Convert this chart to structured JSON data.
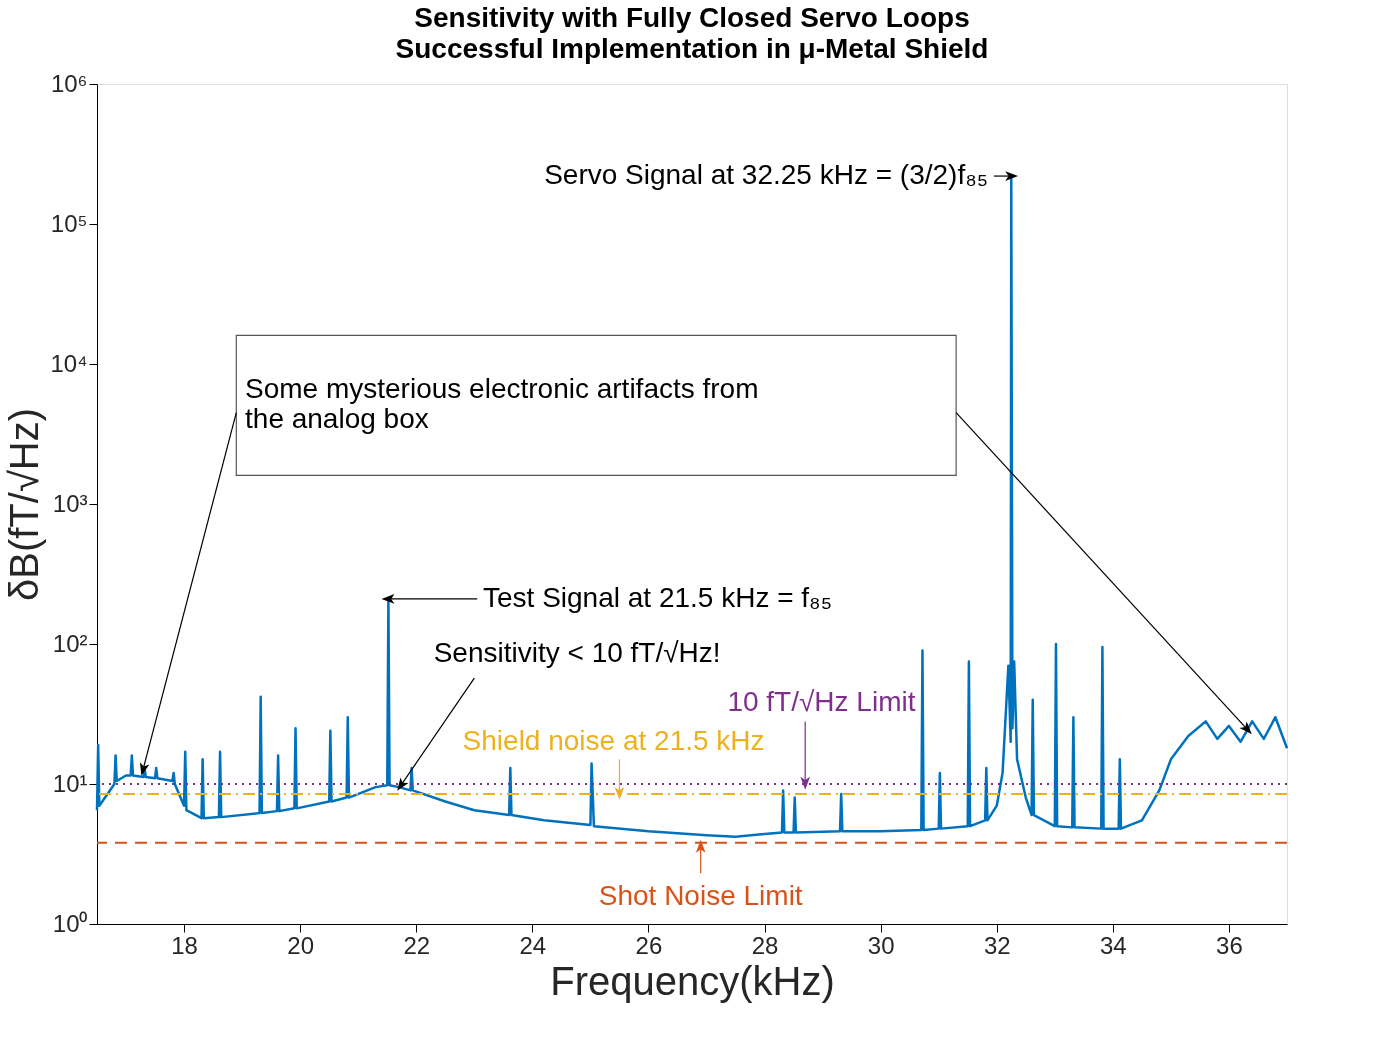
{
  "chart_data": {
    "type": "line",
    "title": "Sensitivity with Fully Closed Servo Loops",
    "subtitle": "Successful Implementation in μ-Metal Shield",
    "xlabel": "Frequency(kHz)",
    "ylabel": "δB(fT/√Hz)",
    "x": [
      16.5,
      16.52,
      16.54,
      16.8,
      16.82,
      16.84,
      17.0,
      17.08,
      17.1,
      17.12,
      17.3,
      17.32,
      17.34,
      17.5,
      17.52,
      17.54,
      17.8,
      17.82,
      17.84,
      18.0,
      18.02,
      18.04,
      18.3,
      18.32,
      18.34,
      18.6,
      18.62,
      18.64,
      19.3,
      19.32,
      19.34,
      19.6,
      19.62,
      19.64,
      19.9,
      19.92,
      19.94,
      20.5,
      20.52,
      20.54,
      20.8,
      20.82,
      20.84,
      21.3,
      21.5,
      21.52,
      21.54,
      21.7,
      21.9,
      21.92,
      21.94,
      22.5,
      23.0,
      23.6,
      23.62,
      23.64,
      24.2,
      25.0,
      25.02,
      25.06,
      26.0,
      27.0,
      27.5,
      28.0,
      28.3,
      28.32,
      28.34,
      28.5,
      28.52,
      28.54,
      29.3,
      29.32,
      29.34,
      30.0,
      30.7,
      30.72,
      30.74,
      31.0,
      31.02,
      31.04,
      31.5,
      31.52,
      31.54,
      31.8,
      31.82,
      31.84,
      32.0,
      32.1,
      32.2,
      32.24,
      32.25,
      32.27,
      32.3,
      32.35,
      32.5,
      32.6,
      32.62,
      32.64,
      33.0,
      33.02,
      33.04,
      33.3,
      33.32,
      33.34,
      33.8,
      33.82,
      33.84,
      34.1,
      34.12,
      34.14,
      34.5,
      34.8,
      35.0,
      35.3,
      35.6,
      35.8,
      36.0,
      36.2,
      36.4,
      36.6,
      36.8,
      37.0
    ],
    "series": [
      {
        "color": "#0072bd",
        "values": [
          6.5,
          19,
          7,
          10,
          16,
          10.5,
          11.5,
          11.5,
          16,
          11.5,
          11.2,
          13,
          11.2,
          11,
          13,
          11,
          10.5,
          12,
          10,
          7,
          17,
          6.5,
          5.7,
          15,
          5.7,
          5.8,
          17,
          5.8,
          6.2,
          42,
          6.2,
          6.4,
          16,
          6.4,
          6.7,
          25,
          6.7,
          7.5,
          24,
          7.5,
          8,
          30,
          8,
          9.5,
          9.8,
          210,
          9.8,
          9.5,
          9,
          13,
          9,
          7.5,
          6.5,
          6,
          13,
          6,
          5.5,
          5.1,
          14,
          5,
          4.6,
          4.3,
          4.2,
          4.4,
          4.5,
          9,
          4.5,
          4.5,
          8,
          4.5,
          4.6,
          8.5,
          4.6,
          4.6,
          4.7,
          90,
          4.7,
          4.8,
          12,
          4.8,
          5,
          75,
          5,
          5.5,
          13,
          5.5,
          7,
          12,
          70,
          20,
          220000,
          25,
          75,
          15,
          8,
          6,
          40,
          6,
          5,
          100,
          5,
          4.9,
          30,
          4.9,
          4.8,
          95,
          4.8,
          4.8,
          15,
          4.8,
          5.5,
          9,
          15,
          22,
          28,
          21,
          26,
          20,
          28,
          21,
          30,
          18
        ]
      }
    ],
    "log": "y",
    "xlim": [
      16.5,
      37
    ],
    "xticks": [
      18,
      20,
      22,
      24,
      26,
      28,
      30,
      32,
      34,
      36
    ],
    "ylim": [
      1,
      1000000
    ],
    "yticks": [
      {
        "value": 1,
        "label": "10⁰"
      },
      {
        "value": 10,
        "label": "10¹"
      },
      {
        "value": 100,
        "label": "10²"
      },
      {
        "value": 1000,
        "label": "10³"
      },
      {
        "value": 10000,
        "label": "10⁴"
      },
      {
        "value": 100000,
        "label": "10⁵"
      },
      {
        "value": 1000000,
        "label": "10⁶"
      }
    ],
    "ref_lines": [
      {
        "axis": "y",
        "value": 10,
        "label": "10 fT/√Hz Limit",
        "color": "#7e2f8e",
        "line_style": "dotted"
      },
      {
        "axis": "y",
        "value": 8.5,
        "label": "Shield noise at 21.5 kHz",
        "color": "#edb120",
        "line_style": "dashdot"
      },
      {
        "axis": "y",
        "value": 3.8,
        "label": "Shot Noise Limit",
        "color": "#d95319",
        "line_style": "dashed"
      }
    ],
    "annotations": [
      {
        "text": "Servo Signal at 32.25 kHz = (3/2)f₈₅",
        "x": 32.25,
        "y": 220000
      },
      {
        "text": "Test Signal at 21.5 kHz = f₈₅",
        "x": 21.5,
        "y": 210
      },
      {
        "text": "Sensitivity < 10 fT/√Hz!",
        "x": 21.7,
        "y": 9.5
      },
      {
        "text": "Some mysterious electronic artifacts from\n the analog box",
        "x": 17.3,
        "y": 13
      }
    ],
    "grid": false,
    "marker": "none",
    "line_style": "solid"
  }
}
